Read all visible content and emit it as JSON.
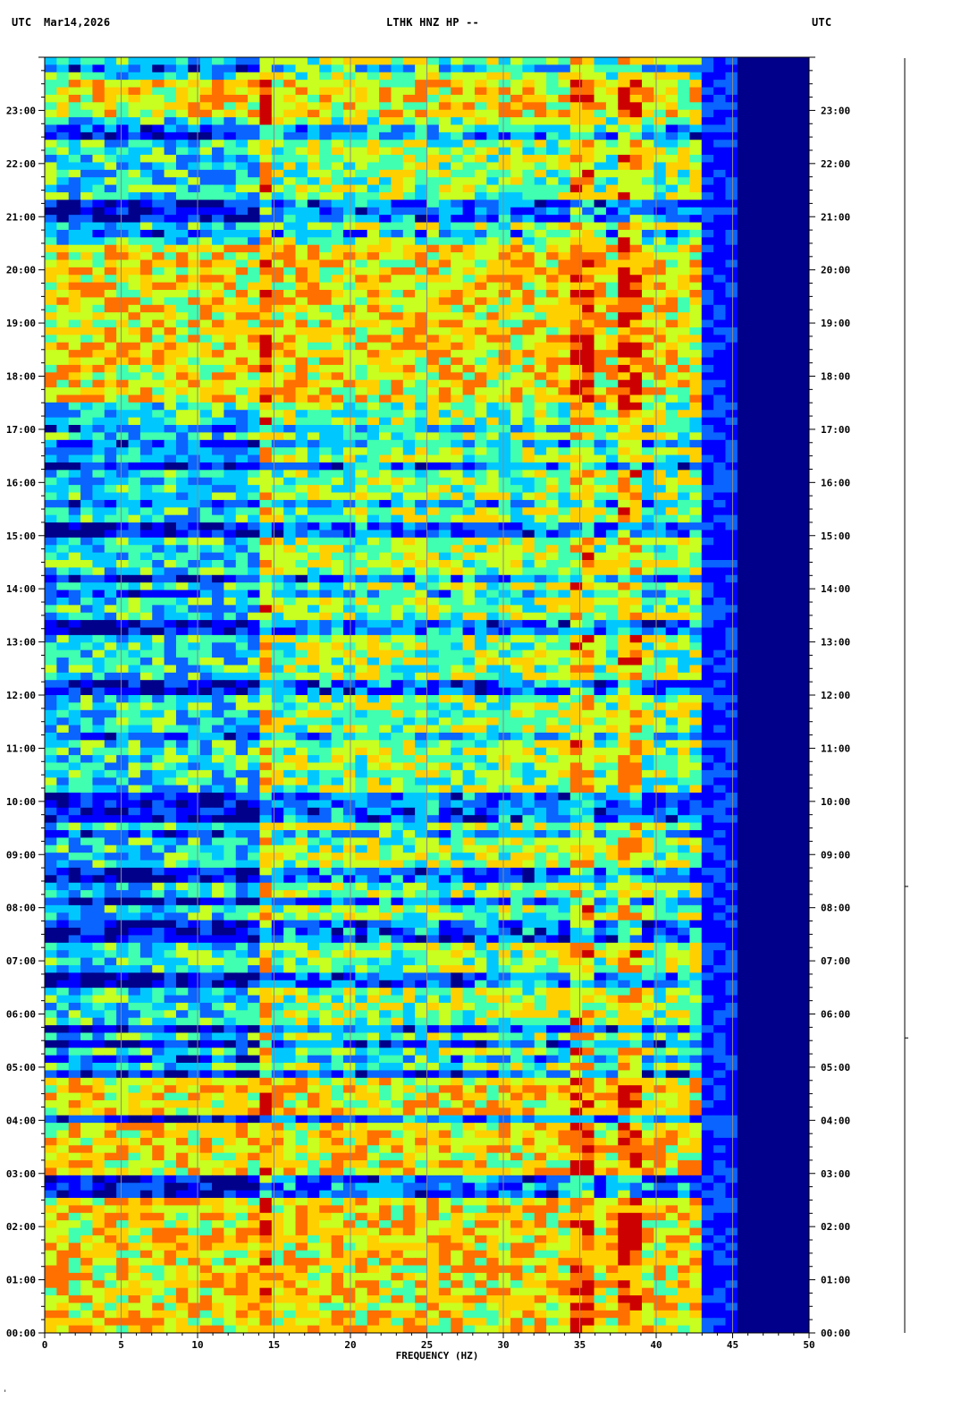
{
  "header": {
    "left_tz": "UTC",
    "date": "Mar14,2026",
    "station": "LTHK HNZ HP --",
    "right_tz": "UTC"
  },
  "chart_data": {
    "type": "heatmap",
    "title": "LTHK HNZ HP --",
    "xlabel": "FREQUENCY (HZ)",
    "ylabel": "",
    "xlim": [
      0,
      50
    ],
    "ylim_hours": [
      0,
      24
    ],
    "x_ticks_major": [
      0,
      5,
      10,
      15,
      20,
      25,
      30,
      35,
      40,
      45,
      50
    ],
    "x_ticks_minor_step": 1,
    "x_tick_labels": [
      "0",
      "5",
      "10",
      "15",
      "20",
      "25",
      "30",
      "35",
      "40",
      "45",
      "50"
    ],
    "y_tick_hours": [
      0,
      1,
      2,
      3,
      4,
      5,
      6,
      7,
      8,
      9,
      10,
      11,
      12,
      13,
      14,
      15,
      16,
      17,
      18,
      19,
      20,
      21,
      22,
      23
    ],
    "y_tick_labels": [
      "00:00",
      "01:00",
      "02:00",
      "03:00",
      "04:00",
      "05:00",
      "06:00",
      "07:00",
      "08:00",
      "09:00",
      "10:00",
      "11:00",
      "12:00",
      "13:00",
      "14:00",
      "15:00",
      "16:00",
      "17:00",
      "18:00",
      "19:00",
      "20:00",
      "21:00",
      "22:00",
      "23:00"
    ],
    "y_minor_per_hour": 4,
    "grid": "vertical lines every 5 Hz",
    "colormap": [
      "#00008b",
      "#0000ff",
      "#0a64ff",
      "#00c8ff",
      "#40ffb0",
      "#c8ff20",
      "#ffd000",
      "#ff7000",
      "#cc0000"
    ],
    "rolloff_hz": 43,
    "dominant_lines_hz": [
      14.2,
      35.2,
      38.2
    ],
    "quiet_bands_hours": [
      [
        2.6,
        2.95
      ],
      [
        4.0,
        4.15
      ],
      [
        4.75,
        4.95
      ],
      [
        5.3,
        5.55
      ],
      [
        5.7,
        5.85
      ],
      [
        6.45,
        6.75
      ],
      [
        7.35,
        7.75
      ],
      [
        8.05,
        8.2
      ],
      [
        8.5,
        8.8
      ],
      [
        9.6,
        10.2
      ],
      [
        12.05,
        12.25
      ],
      [
        13.2,
        13.35
      ],
      [
        14.1,
        14.3
      ],
      [
        15.0,
        15.3
      ],
      [
        16.2,
        16.35
      ],
      [
        20.95,
        21.15
      ],
      [
        21.2,
        21.35
      ],
      [
        22.45,
        22.55
      ],
      [
        23.65,
        23.75
      ]
    ],
    "energetic_bands_hours": [
      [
        0.0,
        2.6
      ],
      [
        2.95,
        4.0
      ],
      [
        4.15,
        4.75
      ],
      [
        17.5,
        20.4
      ],
      [
        22.9,
        23.6
      ]
    ]
  },
  "side_trace": {
    "label": "",
    "tick_hours": [
      5.55,
      8.4
    ]
  },
  "corner_mark": "'"
}
